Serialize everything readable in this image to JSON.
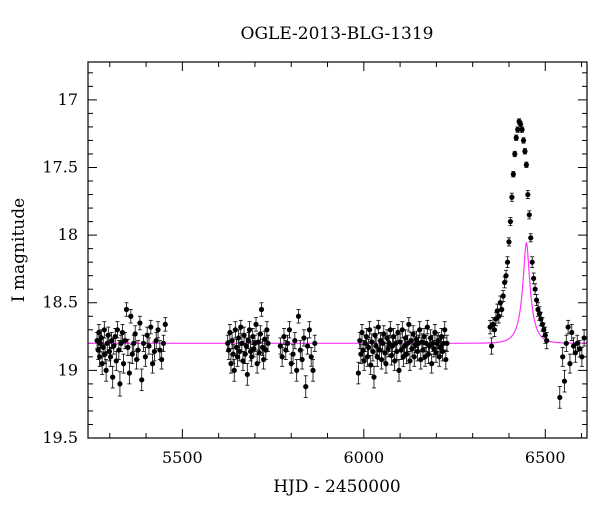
{
  "chart_data": {
    "type": "scatter",
    "title": "OGLE-2013-BLG-1319",
    "xlabel": "HJD - 2450000",
    "ylabel": "I magnitude",
    "xlim": [
      5240,
      6615
    ],
    "ylim": [
      19.5,
      16.72
    ],
    "y_inverted": true,
    "x_ticks": [
      5500,
      6000,
      6500
    ],
    "y_ticks": [
      17,
      17.5,
      18,
      18.5,
      19,
      19.5
    ],
    "x_tick_labels": [
      "5500",
      "6000",
      "6500"
    ],
    "y_tick_labels": [
      "17",
      "17.5",
      "18",
      "18.5",
      "19",
      "19.5"
    ],
    "grid": false,
    "legend": "none",
    "colors": {
      "points": "#000000",
      "model": "#ff33ff"
    },
    "model": {
      "baseline": 18.8,
      "t0": 6448,
      "u0": 0.27,
      "tE": 28
    },
    "points": [
      [
        5265,
        18.78,
        0.06
      ],
      [
        5268,
        18.85,
        0.07
      ],
      [
        5270,
        18.72,
        0.06
      ],
      [
        5272,
        18.9,
        0.07
      ],
      [
        5274,
        18.8,
        0.06
      ],
      [
        5277,
        18.76,
        0.06
      ],
      [
        5279,
        18.95,
        0.08
      ],
      [
        5282,
        18.83,
        0.07
      ],
      [
        5285,
        18.7,
        0.06
      ],
      [
        5287,
        18.88,
        0.07
      ],
      [
        5290,
        19.0,
        0.08
      ],
      [
        5293,
        18.8,
        0.06
      ],
      [
        5296,
        18.74,
        0.06
      ],
      [
        5299,
        18.86,
        0.07
      ],
      [
        5302,
        18.9,
        0.07
      ],
      [
        5305,
        18.78,
        0.06
      ],
      [
        5308,
        19.05,
        0.08
      ],
      [
        5311,
        18.82,
        0.06
      ],
      [
        5315,
        18.75,
        0.06
      ],
      [
        5318,
        18.93,
        0.07
      ],
      [
        5321,
        18.7,
        0.06
      ],
      [
        5325,
        18.85,
        0.07
      ],
      [
        5328,
        19.1,
        0.09
      ],
      [
        5331,
        18.8,
        0.06
      ],
      [
        5335,
        18.72,
        0.06
      ],
      [
        5338,
        18.95,
        0.07
      ],
      [
        5342,
        18.78,
        0.06
      ],
      [
        5346,
        18.55,
        0.05
      ],
      [
        5350,
        18.83,
        0.06
      ],
      [
        5354,
        19.02,
        0.08
      ],
      [
        5358,
        18.6,
        0.05
      ],
      [
        5362,
        18.88,
        0.07
      ],
      [
        5366,
        18.8,
        0.06
      ],
      [
        5370,
        18.73,
        0.06
      ],
      [
        5374,
        18.92,
        0.07
      ],
      [
        5378,
        18.85,
        0.07
      ],
      [
        5383,
        18.65,
        0.05
      ],
      [
        5388,
        19.07,
        0.08
      ],
      [
        5393,
        18.8,
        0.06
      ],
      [
        5398,
        18.9,
        0.07
      ],
      [
        5403,
        18.74,
        0.06
      ],
      [
        5408,
        18.82,
        0.06
      ],
      [
        5413,
        18.68,
        0.05
      ],
      [
        5418,
        18.95,
        0.07
      ],
      [
        5423,
        18.86,
        0.07
      ],
      [
        5428,
        18.78,
        0.06
      ],
      [
        5433,
        18.7,
        0.06
      ],
      [
        5438,
        18.85,
        0.07
      ],
      [
        5443,
        18.92,
        0.07
      ],
      [
        5448,
        18.8,
        0.06
      ],
      [
        5453,
        18.66,
        0.05
      ],
      [
        5625,
        18.8,
        0.06
      ],
      [
        5628,
        18.85,
        0.07
      ],
      [
        5631,
        18.72,
        0.06
      ],
      [
        5634,
        18.95,
        0.07
      ],
      [
        5637,
        18.78,
        0.06
      ],
      [
        5640,
        18.88,
        0.07
      ],
      [
        5643,
        19.0,
        0.08
      ],
      [
        5646,
        18.7,
        0.06
      ],
      [
        5649,
        18.83,
        0.06
      ],
      [
        5652,
        18.9,
        0.07
      ],
      [
        5655,
        18.76,
        0.06
      ],
      [
        5658,
        18.86,
        0.07
      ],
      [
        5661,
        18.68,
        0.05
      ],
      [
        5664,
        18.8,
        0.06
      ],
      [
        5667,
        18.93,
        0.07
      ],
      [
        5670,
        18.74,
        0.06
      ],
      [
        5673,
        18.88,
        0.07
      ],
      [
        5676,
        18.82,
        0.06
      ],
      [
        5679,
        19.03,
        0.08
      ],
      [
        5682,
        18.78,
        0.06
      ],
      [
        5685,
        18.7,
        0.06
      ],
      [
        5688,
        18.86,
        0.07
      ],
      [
        5691,
        18.9,
        0.07
      ],
      [
        5694,
        18.75,
        0.06
      ],
      [
        5697,
        18.84,
        0.06
      ],
      [
        5700,
        18.8,
        0.06
      ],
      [
        5703,
        18.66,
        0.05
      ],
      [
        5706,
        18.95,
        0.07
      ],
      [
        5709,
        18.79,
        0.06
      ],
      [
        5712,
        18.87,
        0.07
      ],
      [
        5715,
        18.73,
        0.06
      ],
      [
        5718,
        18.55,
        0.05
      ],
      [
        5721,
        18.83,
        0.06
      ],
      [
        5724,
        18.92,
        0.07
      ],
      [
        5727,
        18.77,
        0.06
      ],
      [
        5730,
        18.85,
        0.07
      ],
      [
        5733,
        18.7,
        0.06
      ],
      [
        5736,
        18.8,
        0.06
      ],
      [
        5770,
        18.82,
        0.06
      ],
      [
        5775,
        18.9,
        0.07
      ],
      [
        5780,
        18.75,
        0.06
      ],
      [
        5785,
        18.85,
        0.07
      ],
      [
        5790,
        18.8,
        0.06
      ],
      [
        5795,
        18.7,
        0.06
      ],
      [
        5800,
        18.95,
        0.07
      ],
      [
        5805,
        18.88,
        0.07
      ],
      [
        5810,
        18.78,
        0.06
      ],
      [
        5815,
        19.0,
        0.08
      ],
      [
        5820,
        18.6,
        0.05
      ],
      [
        5825,
        18.85,
        0.07
      ],
      [
        5830,
        18.92,
        0.07
      ],
      [
        5835,
        18.76,
        0.06
      ],
      [
        5840,
        19.12,
        0.08
      ],
      [
        5845,
        18.82,
        0.06
      ],
      [
        5850,
        18.7,
        0.06
      ],
      [
        5855,
        18.9,
        0.07
      ],
      [
        5860,
        19.0,
        0.08
      ],
      [
        5865,
        18.8,
        0.06
      ],
      [
        5985,
        19.02,
        0.08
      ],
      [
        5989,
        18.78,
        0.06
      ],
      [
        5992,
        18.88,
        0.07
      ],
      [
        5995,
        18.72,
        0.06
      ],
      [
        5998,
        18.85,
        0.07
      ],
      [
        6001,
        18.93,
        0.07
      ],
      [
        6004,
        18.8,
        0.06
      ],
      [
        6007,
        18.75,
        0.06
      ],
      [
        6010,
        18.9,
        0.07
      ],
      [
        6013,
        18.83,
        0.06
      ],
      [
        6016,
        18.7,
        0.06
      ],
      [
        6019,
        18.96,
        0.07
      ],
      [
        6022,
        18.79,
        0.06
      ],
      [
        6025,
        18.86,
        0.07
      ],
      [
        6028,
        19.05,
        0.08
      ],
      [
        6031,
        18.74,
        0.06
      ],
      [
        6034,
        18.82,
        0.06
      ],
      [
        6037,
        18.9,
        0.07
      ],
      [
        6040,
        18.68,
        0.05
      ],
      [
        6043,
        18.85,
        0.07
      ],
      [
        6046,
        18.78,
        0.06
      ],
      [
        6049,
        18.92,
        0.07
      ],
      [
        6052,
        18.8,
        0.06
      ],
      [
        6055,
        18.73,
        0.06
      ],
      [
        6058,
        18.87,
        0.07
      ],
      [
        6061,
        18.95,
        0.07
      ],
      [
        6064,
        18.76,
        0.06
      ],
      [
        6067,
        18.84,
        0.06
      ],
      [
        6070,
        18.8,
        0.06
      ],
      [
        6073,
        18.7,
        0.06
      ],
      [
        6076,
        18.89,
        0.07
      ],
      [
        6079,
        18.82,
        0.06
      ],
      [
        6082,
        18.75,
        0.06
      ],
      [
        6085,
        18.93,
        0.07
      ],
      [
        6088,
        18.8,
        0.06
      ],
      [
        6091,
        18.86,
        0.07
      ],
      [
        6094,
        18.72,
        0.06
      ],
      [
        6097,
        19.0,
        0.08
      ],
      [
        6100,
        18.79,
        0.06
      ],
      [
        6103,
        18.85,
        0.07
      ],
      [
        6106,
        18.7,
        0.06
      ],
      [
        6109,
        18.9,
        0.07
      ],
      [
        6112,
        18.82,
        0.06
      ],
      [
        6115,
        18.76,
        0.06
      ],
      [
        6118,
        18.88,
        0.07
      ],
      [
        6121,
        18.8,
        0.06
      ],
      [
        6124,
        18.66,
        0.05
      ],
      [
        6127,
        18.93,
        0.07
      ],
      [
        6130,
        18.78,
        0.06
      ],
      [
        6133,
        18.84,
        0.06
      ],
      [
        6136,
        18.73,
        0.06
      ],
      [
        6139,
        18.9,
        0.07
      ],
      [
        6142,
        18.81,
        0.06
      ],
      [
        6145,
        18.77,
        0.06
      ],
      [
        6148,
        18.86,
        0.07
      ],
      [
        6151,
        18.8,
        0.06
      ],
      [
        6154,
        18.7,
        0.06
      ],
      [
        6157,
        18.92,
        0.07
      ],
      [
        6160,
        18.79,
        0.06
      ],
      [
        6163,
        18.85,
        0.07
      ],
      [
        6166,
        18.75,
        0.06
      ],
      [
        6169,
        18.9,
        0.07
      ],
      [
        6172,
        18.8,
        0.06
      ],
      [
        6175,
        18.68,
        0.05
      ],
      [
        6178,
        18.88,
        0.07
      ],
      [
        6181,
        18.82,
        0.06
      ],
      [
        6184,
        18.76,
        0.06
      ],
      [
        6187,
        18.95,
        0.07
      ],
      [
        6190,
        18.8,
        0.06
      ],
      [
        6193,
        18.84,
        0.06
      ],
      [
        6196,
        18.72,
        0.06
      ],
      [
        6199,
        18.87,
        0.07
      ],
      [
        6202,
        18.8,
        0.06
      ],
      [
        6205,
        18.78,
        0.06
      ],
      [
        6208,
        18.9,
        0.07
      ],
      [
        6211,
        18.83,
        0.06
      ],
      [
        6214,
        18.75,
        0.06
      ],
      [
        6217,
        18.86,
        0.07
      ],
      [
        6220,
        18.8,
        0.06
      ],
      [
        6223,
        18.7,
        0.06
      ],
      [
        6226,
        18.92,
        0.07
      ],
      [
        6229,
        18.8,
        0.06
      ],
      [
        6348,
        18.68,
        0.05
      ],
      [
        6352,
        18.82,
        0.06
      ],
      [
        6356,
        18.66,
        0.05
      ],
      [
        6360,
        18.7,
        0.05
      ],
      [
        6364,
        18.62,
        0.05
      ],
      [
        6368,
        18.56,
        0.05
      ],
      [
        6372,
        18.6,
        0.05
      ],
      [
        6376,
        18.5,
        0.05
      ],
      [
        6380,
        18.55,
        0.05
      ],
      [
        6384,
        18.45,
        0.04
      ],
      [
        6388,
        18.35,
        0.04
      ],
      [
        6392,
        18.3,
        0.04
      ],
      [
        6396,
        18.2,
        0.04
      ],
      [
        6400,
        18.05,
        0.03
      ],
      [
        6404,
        17.9,
        0.03
      ],
      [
        6408,
        17.72,
        0.03
      ],
      [
        6412,
        17.55,
        0.02
      ],
      [
        6416,
        17.4,
        0.02
      ],
      [
        6420,
        17.28,
        0.02
      ],
      [
        6424,
        17.22,
        0.02
      ],
      [
        6428,
        17.16,
        0.02
      ],
      [
        6432,
        17.18,
        0.02
      ],
      [
        6436,
        17.22,
        0.02
      ],
      [
        6440,
        17.3,
        0.02
      ],
      [
        6444,
        17.38,
        0.02
      ],
      [
        6448,
        17.48,
        0.02
      ],
      [
        6452,
        17.7,
        0.03
      ],
      [
        6456,
        17.85,
        0.03
      ],
      [
        6460,
        18.02,
        0.03
      ],
      [
        6464,
        18.2,
        0.04
      ],
      [
        6468,
        18.32,
        0.04
      ],
      [
        6472,
        18.4,
        0.04
      ],
      [
        6476,
        18.48,
        0.04
      ],
      [
        6480,
        18.55,
        0.05
      ],
      [
        6484,
        18.58,
        0.05
      ],
      [
        6488,
        18.62,
        0.05
      ],
      [
        6492,
        18.66,
        0.05
      ],
      [
        6496,
        18.7,
        0.05
      ],
      [
        6500,
        18.74,
        0.06
      ],
      [
        6504,
        18.78,
        0.06
      ],
      [
        6540,
        19.2,
        0.08
      ],
      [
        6548,
        18.9,
        0.07
      ],
      [
        6553,
        19.08,
        0.08
      ],
      [
        6558,
        18.8,
        0.06
      ],
      [
        6563,
        18.68,
        0.05
      ],
      [
        6568,
        18.95,
        0.07
      ],
      [
        6573,
        18.72,
        0.06
      ],
      [
        6578,
        18.82,
        0.06
      ],
      [
        6583,
        18.87,
        0.07
      ],
      [
        6588,
        18.8,
        0.06
      ],
      [
        6595,
        18.84,
        0.06
      ],
      [
        6601,
        18.9,
        0.07
      ],
      [
        6607,
        18.76,
        0.06
      ]
    ]
  }
}
